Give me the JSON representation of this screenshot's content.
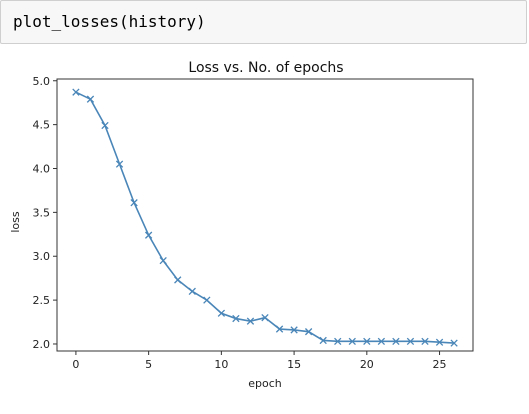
{
  "cell": {
    "code": "plot_losses(history)"
  },
  "chart_data": {
    "type": "line",
    "title": "Loss vs. No. of epochs",
    "xlabel": "epoch",
    "ylabel": "loss",
    "xlim": [
      -1.3,
      27.3
    ],
    "ylim": [
      1.92,
      5.02
    ],
    "xticks": [
      0,
      5,
      10,
      15,
      20,
      25
    ],
    "yticks": [
      2.0,
      2.5,
      3.0,
      3.5,
      4.0,
      4.5,
      5.0
    ],
    "ytick_labels": [
      "2.0",
      "2.5",
      "3.0",
      "3.5",
      "4.0",
      "4.5",
      "5.0"
    ],
    "marker": "x",
    "line_color": "#4a86b8",
    "grid": false,
    "series": [
      {
        "x": [
          0,
          1,
          2,
          3,
          4,
          5,
          6,
          7,
          8,
          9,
          10,
          11,
          12,
          13,
          14,
          15,
          16,
          17,
          18,
          19,
          20,
          21,
          22,
          23,
          24,
          25,
          26
        ],
        "values": [
          4.87,
          4.79,
          4.49,
          4.05,
          3.61,
          3.24,
          2.95,
          2.73,
          2.6,
          2.5,
          2.35,
          2.29,
          2.26,
          2.3,
          2.17,
          2.16,
          2.14,
          2.04,
          2.03,
          2.03,
          2.03,
          2.03,
          2.03,
          2.03,
          2.03,
          2.02,
          2.01
        ]
      }
    ]
  }
}
